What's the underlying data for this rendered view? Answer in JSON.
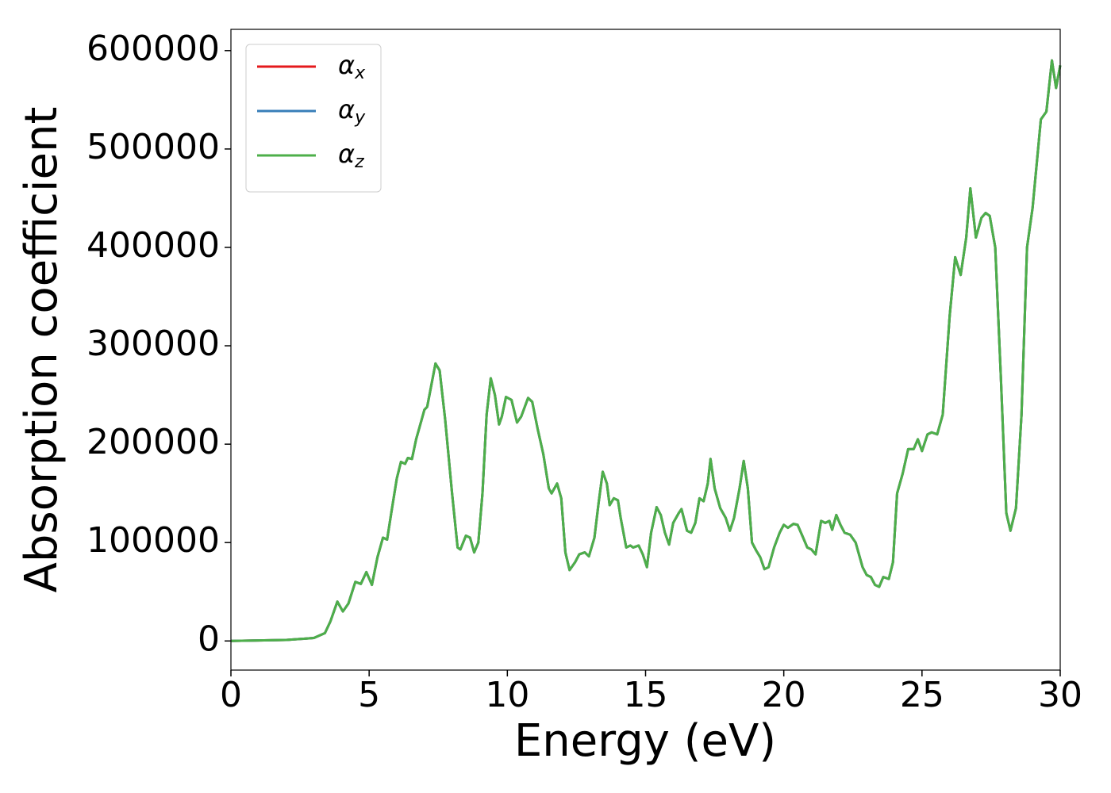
{
  "chart_data": {
    "type": "line",
    "xlabel": "Energy (eV)",
    "ylabel": "Absorption coefficient",
    "x": [
      0,
      2,
      3,
      3.4,
      3.6,
      3.85,
      4.05,
      4.25,
      4.5,
      4.7,
      4.9,
      5.1,
      5.3,
      5.5,
      5.65,
      5.8,
      6.0,
      6.15,
      6.3,
      6.4,
      6.55,
      6.7,
      6.9,
      7.0,
      7.1,
      7.25,
      7.4,
      7.55,
      7.75,
      8.0,
      8.2,
      8.3,
      8.5,
      8.65,
      8.8,
      8.95,
      9.1,
      9.25,
      9.4,
      9.55,
      9.7,
      9.8,
      9.95,
      10.15,
      10.35,
      10.5,
      10.75,
      10.9,
      11.1,
      11.3,
      11.5,
      11.6,
      11.8,
      11.95,
      12.1,
      12.25,
      12.45,
      12.6,
      12.8,
      12.95,
      13.15,
      13.3,
      13.45,
      13.6,
      13.7,
      13.85,
      14.0,
      14.1,
      14.3,
      14.45,
      14.55,
      14.75,
      14.9,
      15.05,
      15.2,
      15.4,
      15.55,
      15.7,
      15.85,
      16.0,
      16.2,
      16.3,
      16.5,
      16.65,
      16.8,
      16.95,
      17.1,
      17.25,
      17.35,
      17.5,
      17.7,
      17.9,
      18.05,
      18.2,
      18.4,
      18.55,
      18.7,
      18.85,
      19.0,
      19.15,
      19.3,
      19.45,
      19.65,
      19.85,
      20.0,
      20.15,
      20.35,
      20.5,
      20.7,
      20.85,
      21.0,
      21.15,
      21.35,
      21.5,
      21.65,
      21.75,
      21.9,
      22.05,
      22.2,
      22.4,
      22.6,
      22.85,
      23.0,
      23.15,
      23.3,
      23.45,
      23.6,
      23.8,
      23.95,
      24.1,
      24.3,
      24.5,
      24.7,
      24.85,
      25.0,
      25.2,
      25.35,
      25.55,
      25.75,
      26.0,
      26.2,
      26.4,
      26.6,
      26.75,
      26.95,
      27.15,
      27.3,
      27.45,
      27.65,
      27.85,
      28.05,
      28.2,
      28.4,
      28.6,
      28.8,
      29.0,
      29.3,
      29.5,
      29.7,
      29.85,
      30.0
    ],
    "series": [
      {
        "name": "αx",
        "color": "#e41a1c",
        "values": [
          0,
          1000,
          3000,
          8000,
          20000,
          40000,
          30000,
          38000,
          60000,
          58000,
          70000,
          57000,
          85000,
          105000,
          103000,
          130000,
          165000,
          182000,
          180000,
          186000,
          185000,
          205000,
          225000,
          235000,
          238000,
          260000,
          282000,
          275000,
          225000,
          150000,
          95000,
          93000,
          107000,
          105000,
          90000,
          100000,
          150000,
          230000,
          267000,
          250000,
          220000,
          228000,
          248000,
          245000,
          222000,
          228000,
          247000,
          243000,
          215000,
          190000,
          155000,
          150000,
          160000,
          145000,
          90000,
          72000,
          80000,
          88000,
          90000,
          86000,
          105000,
          140000,
          172000,
          160000,
          138000,
          145000,
          143000,
          125000,
          95000,
          97000,
          95000,
          97000,
          88000,
          75000,
          110000,
          136000,
          128000,
          110000,
          98000,
          120000,
          130000,
          134000,
          112000,
          110000,
          120000,
          145000,
          142000,
          160000,
          185000,
          155000,
          135000,
          125000,
          112000,
          125000,
          155000,
          183000,
          155000,
          100000,
          92000,
          85000,
          73000,
          75000,
          95000,
          110000,
          118000,
          115000,
          119000,
          118000,
          105000,
          95000,
          93000,
          88000,
          122000,
          120000,
          122000,
          113000,
          128000,
          118000,
          110000,
          108000,
          100000,
          75000,
          67000,
          65000,
          57000,
          55000,
          65000,
          63000,
          80000,
          150000,
          170000,
          195000,
          195000,
          205000,
          193000,
          210000,
          212000,
          210000,
          230000,
          330000,
          390000,
          372000,
          410000,
          460000,
          410000,
          430000,
          435000,
          432000,
          400000,
          270000,
          130000,
          112000,
          135000,
          230000,
          400000,
          440000,
          530000,
          538000,
          590000,
          562000,
          585000
        ]
      },
      {
        "name": "αy",
        "color": "#377eb8",
        "values": [
          0,
          1000,
          3000,
          8000,
          20000,
          40000,
          30000,
          38000,
          60000,
          58000,
          70000,
          57000,
          85000,
          105000,
          103000,
          130000,
          165000,
          182000,
          180000,
          186000,
          185000,
          205000,
          225000,
          235000,
          238000,
          260000,
          282000,
          275000,
          225000,
          150000,
          95000,
          93000,
          107000,
          105000,
          90000,
          100000,
          150000,
          230000,
          267000,
          250000,
          220000,
          228000,
          248000,
          245000,
          222000,
          228000,
          247000,
          243000,
          215000,
          190000,
          155000,
          150000,
          160000,
          145000,
          90000,
          72000,
          80000,
          88000,
          90000,
          86000,
          105000,
          140000,
          172000,
          160000,
          138000,
          145000,
          143000,
          125000,
          95000,
          97000,
          95000,
          97000,
          88000,
          75000,
          110000,
          136000,
          128000,
          110000,
          98000,
          120000,
          130000,
          134000,
          112000,
          110000,
          120000,
          145000,
          142000,
          160000,
          185000,
          155000,
          135000,
          125000,
          112000,
          125000,
          155000,
          183000,
          155000,
          100000,
          92000,
          85000,
          73000,
          75000,
          95000,
          110000,
          118000,
          115000,
          119000,
          118000,
          105000,
          95000,
          93000,
          88000,
          122000,
          120000,
          122000,
          113000,
          128000,
          118000,
          110000,
          108000,
          100000,
          75000,
          67000,
          65000,
          57000,
          55000,
          65000,
          63000,
          80000,
          150000,
          170000,
          195000,
          195000,
          205000,
          193000,
          210000,
          212000,
          210000,
          230000,
          330000,
          390000,
          372000,
          410000,
          460000,
          410000,
          430000,
          435000,
          432000,
          400000,
          270000,
          130000,
          112000,
          135000,
          230000,
          400000,
          440000,
          530000,
          538000,
          590000,
          562000,
          585000
        ]
      },
      {
        "name": "αz",
        "color": "#4daf4a",
        "values": [
          0,
          1000,
          3000,
          8000,
          20000,
          40000,
          30000,
          38000,
          60000,
          58000,
          70000,
          57000,
          85000,
          105000,
          103000,
          130000,
          165000,
          182000,
          180000,
          186000,
          185000,
          205000,
          225000,
          235000,
          238000,
          260000,
          282000,
          275000,
          225000,
          150000,
          95000,
          93000,
          107000,
          105000,
          90000,
          100000,
          150000,
          230000,
          267000,
          250000,
          220000,
          228000,
          248000,
          245000,
          222000,
          228000,
          247000,
          243000,
          215000,
          190000,
          155000,
          150000,
          160000,
          145000,
          90000,
          72000,
          80000,
          88000,
          90000,
          86000,
          105000,
          140000,
          172000,
          160000,
          138000,
          145000,
          143000,
          125000,
          95000,
          97000,
          95000,
          97000,
          88000,
          75000,
          110000,
          136000,
          128000,
          110000,
          98000,
          120000,
          130000,
          134000,
          112000,
          110000,
          120000,
          145000,
          142000,
          160000,
          185000,
          155000,
          135000,
          125000,
          112000,
          125000,
          155000,
          183000,
          155000,
          100000,
          92000,
          85000,
          73000,
          75000,
          95000,
          110000,
          118000,
          115000,
          119000,
          118000,
          105000,
          95000,
          93000,
          88000,
          122000,
          120000,
          122000,
          113000,
          128000,
          118000,
          110000,
          108000,
          100000,
          75000,
          67000,
          65000,
          57000,
          55000,
          65000,
          63000,
          80000,
          150000,
          170000,
          195000,
          195000,
          205000,
          193000,
          210000,
          212000,
          210000,
          230000,
          330000,
          390000,
          372000,
          410000,
          460000,
          410000,
          430000,
          435000,
          432000,
          400000,
          270000,
          130000,
          112000,
          135000,
          230000,
          400000,
          440000,
          530000,
          538000,
          590000,
          562000,
          585000
        ]
      }
    ],
    "xlim": [
      0,
      30
    ],
    "xticks": [
      0,
      5,
      10,
      15,
      20,
      25,
      30
    ],
    "ylim": [
      -29600,
      621600
    ],
    "yticks": [
      0,
      100000,
      200000,
      300000,
      400000,
      500000,
      600000
    ],
    "grid": false,
    "legend": "upper left"
  }
}
